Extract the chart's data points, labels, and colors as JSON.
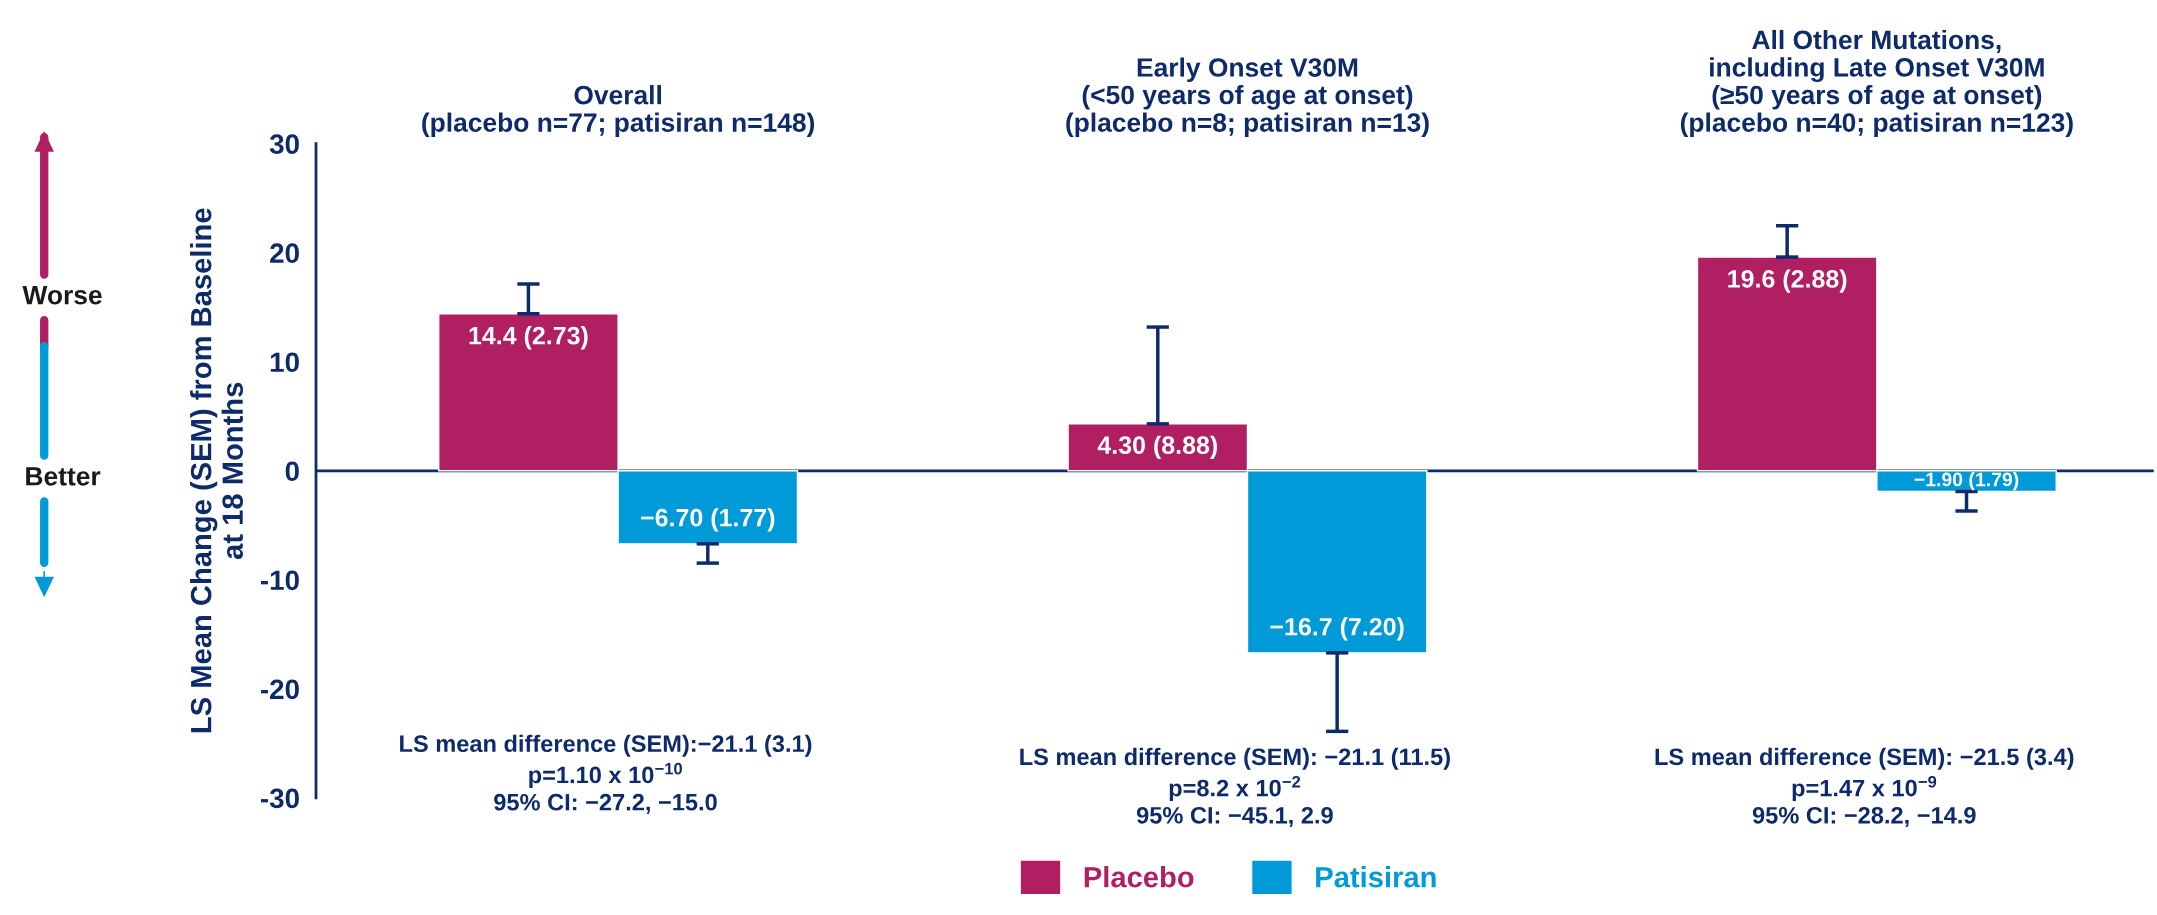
{
  "chart_data": {
    "type": "bar",
    "categories": [
      "Overall\n(placebo n=77; patisiran n=148)",
      "Early Onset V30M\n(<50 years of age at onset)\n(placebo n=8; patisiran n=13)",
      "All Other Mutations,\nincluding Late Onset V30M\n(≥50 years of age at onset)\n(placebo n=40; patisiran n=123)"
    ],
    "series": [
      {
        "name": "Placebo",
        "color": "#b01f62",
        "values": [
          14.4,
          4.3,
          19.6
        ],
        "errors": [
          [
            14.4,
            17.13
          ],
          [
            4.3,
            13.18
          ],
          [
            19.6,
            22.48
          ]
        ],
        "value_labels": [
          "14.4 (2.73)",
          "4.30 (8.88)",
          "19.6 (2.88)"
        ]
      },
      {
        "name": "Patisiran",
        "color": "#009ad9",
        "values": [
          -6.7,
          -16.7,
          -1.9
        ],
        "errors": [
          [
            -8.47,
            -6.7
          ],
          [
            -23.9,
            -16.7
          ],
          [
            -3.69,
            -1.9
          ]
        ],
        "value_labels": [
          "−6.70 (1.77)",
          "−16.7 (7.20)",
          "−1.90 (1.79)"
        ]
      }
    ],
    "ylabel": "LS Mean Change (SEM) from Baseline\nat 18 Months",
    "ylim": [
      -30,
      30
    ],
    "yticks": [
      30,
      20,
      10,
      0,
      -10,
      -20,
      -30
    ],
    "annotations": [
      "Worse",
      "Better",
      "LS mean difference (SEM):−21.1 (3.1)\np=1.10 x 10$^{−10}$\n95% CI: −27.2, −15.0",
      "LS mean difference (SEM): −21.1 (11.5)\np=8.2 x 10$^{−2}$\n95% CI: −45.1, 2.9",
      "LS mean difference (SEM): −21.5 (3.4)\np=1.47 x 10$^{−9}$\n95% CI: −28.2, −14.9"
    ],
    "ref_lines": [
      {
        "axis": "y",
        "value": 0,
        "color": "#0d2a6b"
      }
    ],
    "legend": "bottom",
    "grid": false
  }
}
